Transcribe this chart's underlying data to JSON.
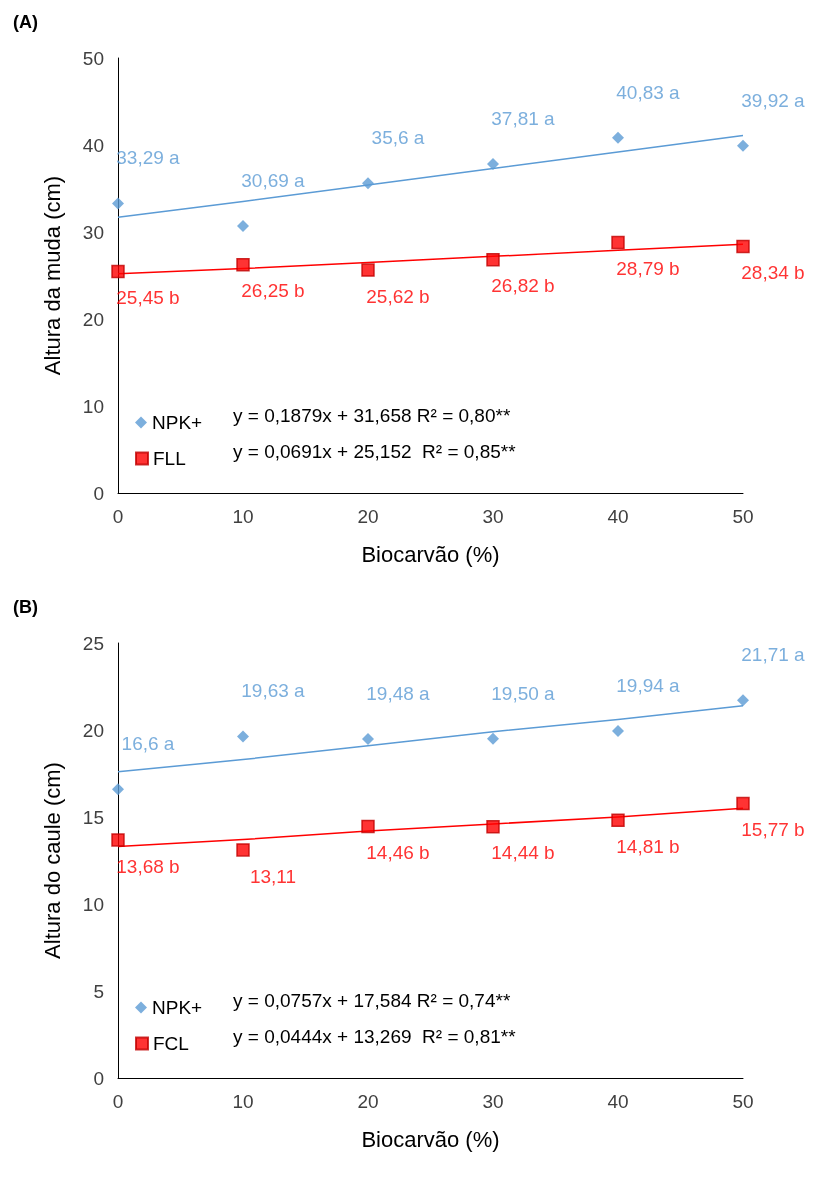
{
  "chart_data": [
    {
      "type": "scatter",
      "title": "(A)",
      "xlabel": "Biocarvão (%)",
      "ylabel": "Altura da muda (cm)",
      "x": [
        0,
        10,
        20,
        30,
        40,
        50
      ],
      "xlim": [
        0,
        50
      ],
      "xticks": [
        0,
        10,
        20,
        30,
        40,
        50
      ],
      "ylim": [
        0,
        50
      ],
      "yticks": [
        0,
        10,
        20,
        30,
        40,
        50
      ],
      "grid": false,
      "legend": "bottom left",
      "series": [
        {
          "name": "NPK+",
          "color": "#5b9bd5",
          "marker": "diamond",
          "values": [
            33.29,
            30.69,
            35.6,
            37.81,
            40.83,
            39.92
          ],
          "value_labels": [
            "33,29 a",
            "30,69 a",
            "35,6 a",
            "37,81 a",
            "40,83 a",
            "39,92 a"
          ]
        },
        {
          "name": "FLL",
          "color": "#ff0000",
          "marker": "square",
          "values": [
            25.45,
            26.25,
            25.62,
            26.82,
            28.79,
            28.34
          ],
          "value_labels": [
            "25,45 b",
            "26,25 b",
            "25,62 b",
            "26,82 b",
            "28,79 b",
            "28,34 b"
          ]
        },
        {
          "type": "line",
          "color": "#5b9bd5",
          "values": [
            31.7,
            33.5,
            35.4,
            37.3,
            39.2,
            41.1
          ],
          "marker": "none"
        },
        {
          "type": "line",
          "color": "#ff0000",
          "values": [
            25.2,
            25.8,
            26.5,
            27.2,
            27.9,
            28.6
          ],
          "marker": "none"
        }
      ],
      "annotations": [
        "y = 0,1879x + 31,658 R² = 0,80**",
        "y = 0,0691x + 25,152  R² = 0,85**"
      ]
    },
    {
      "type": "scatter",
      "title": "(B)",
      "xlabel": "Biocarvão (%)",
      "ylabel": "Altura do caule (cm)",
      "x": [
        0,
        10,
        20,
        30,
        40,
        50
      ],
      "xlim": [
        0,
        50
      ],
      "xticks": [
        0,
        10,
        20,
        30,
        40,
        50
      ],
      "ylim": [
        0,
        25
      ],
      "yticks": [
        0,
        5,
        10,
        15,
        20,
        25
      ],
      "grid": false,
      "legend": "bottom left",
      "series": [
        {
          "name": "NPK+",
          "color": "#5b9bd5",
          "marker": "diamond",
          "values": [
            16.6,
            19.63,
            19.48,
            19.5,
            19.94,
            21.71
          ],
          "value_labels": [
            "16,6 a",
            "19,63 a",
            "19,48 a",
            "19,50 a",
            "19,94 a",
            "21,71 a"
          ]
        },
        {
          "name": "FCL",
          "color": "#ff0000",
          "marker": "square",
          "values": [
            13.68,
            13.11,
            14.46,
            14.44,
            14.81,
            15.77
          ],
          "value_labels": [
            "13,68 b",
            "13,11",
            "14,46 b",
            "14,44 b",
            "14,81 b",
            "15,77 b"
          ]
        },
        {
          "type": "line",
          "color": "#5b9bd5",
          "values": [
            17.6,
            18.3,
            19.1,
            19.9,
            20.6,
            21.4
          ],
          "marker": "none"
        },
        {
          "type": "line",
          "color": "#ff0000",
          "values": [
            13.3,
            13.7,
            14.2,
            14.6,
            15.0,
            15.5
          ],
          "marker": "none"
        }
      ],
      "annotations": [
        "y = 0,0757x + 17,584 R² = 0,74**",
        "y = 0,0444x + 13,269  R² = 0,81**"
      ]
    }
  ]
}
